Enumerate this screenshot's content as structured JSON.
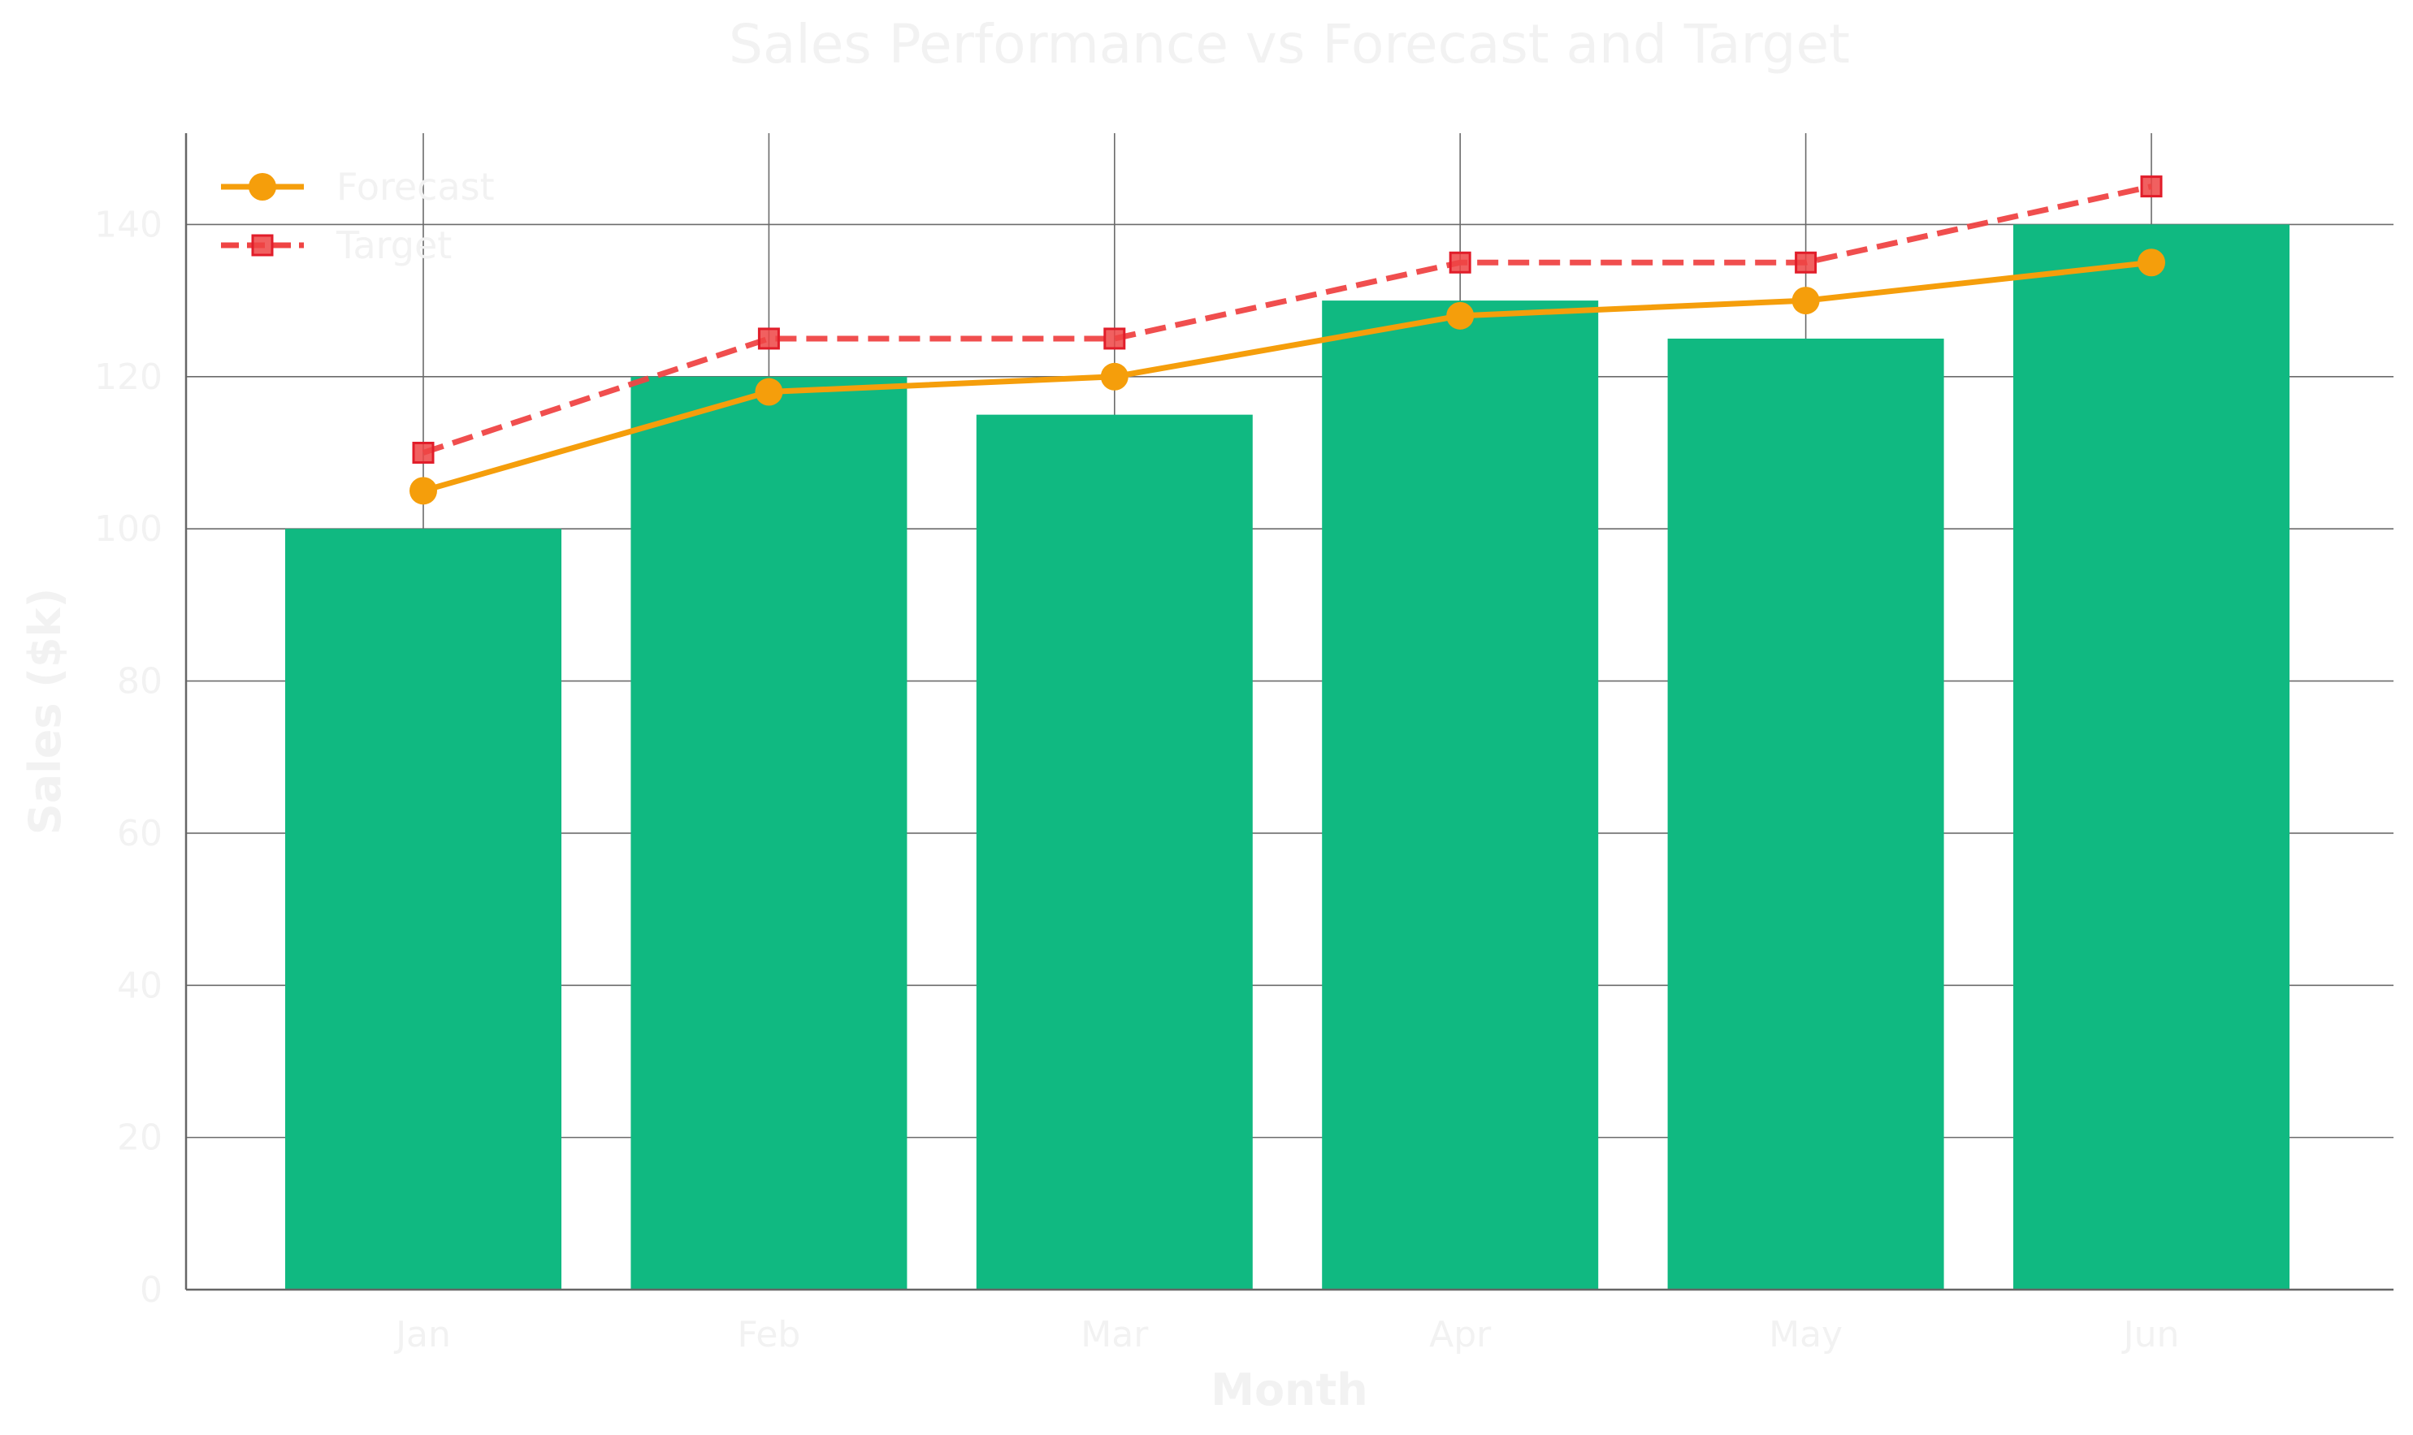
{
  "chart_data": {
    "type": "bar",
    "title": "Sales Performance vs Forecast and Target",
    "xlabel": "Month",
    "ylabel": "Sales ($k)",
    "categories": [
      "Jan",
      "Feb",
      "Mar",
      "Apr",
      "May",
      "Jun"
    ],
    "ylim": [
      0,
      152
    ],
    "yticks": [
      0,
      20,
      40,
      60,
      80,
      100,
      120,
      140
    ],
    "grid": true,
    "legend_position": "top-left",
    "series": [
      {
        "type": "bar",
        "values": [
          100,
          120,
          115,
          130,
          125,
          140
        ],
        "color": "#10b981"
      },
      {
        "name": "Forecast",
        "type": "line",
        "values": [
          105,
          118,
          120,
          128,
          130,
          135
        ],
        "color": "#f59e0b",
        "marker": "circle",
        "line_style": "solid"
      },
      {
        "name": "Target",
        "type": "line",
        "values": [
          110,
          125,
          125,
          135,
          135,
          145
        ],
        "color": "#ef4444",
        "marker": "square",
        "line_style": "dashed"
      }
    ]
  }
}
